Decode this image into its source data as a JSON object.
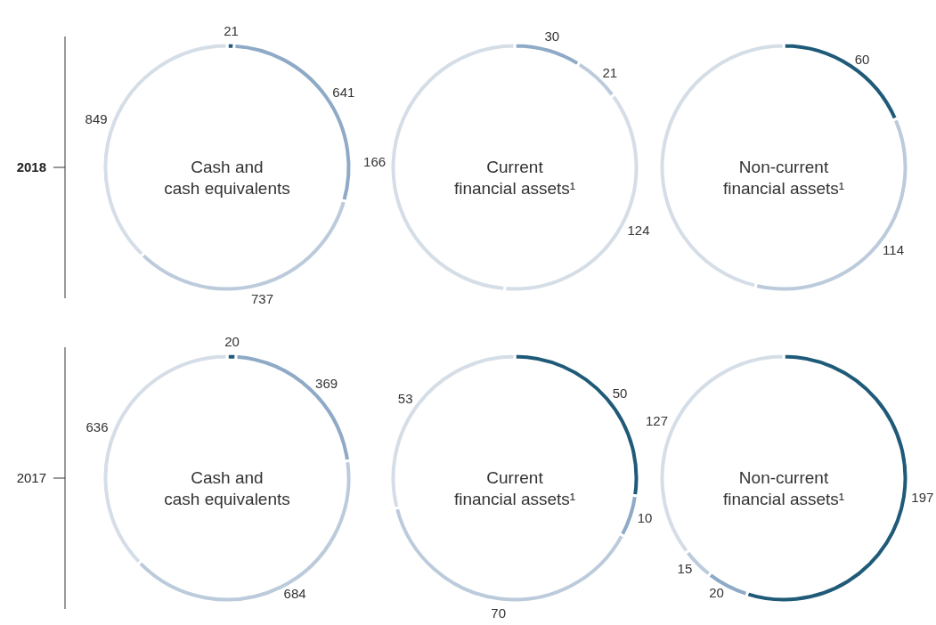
{
  "chart_data": [
    {
      "type": "donut",
      "title": "Cash and\ncash equivalents",
      "categories": [
        null,
        null,
        null,
        null
      ],
      "values": [
        21,
        641,
        737,
        849
      ],
      "colors": [
        "#1f5a78",
        "#8eaac6",
        "#bccbdb",
        "#d5dee7"
      ],
      "value_labels": [
        "21",
        "641",
        "737",
        "849"
      ],
      "annotations": [
        "2018"
      ]
    },
    {
      "type": "donut",
      "title": "Current\nfinancial assets¹",
      "categories": [
        null,
        null,
        null,
        null
      ],
      "values": [
        30,
        21,
        124,
        166
      ],
      "colors": [
        "#8eaac6",
        "#bccbdb",
        "#d5dee7",
        "#d5dee7"
      ],
      "value_labels": [
        "30",
        "21",
        "124",
        "166"
      ]
    },
    {
      "type": "donut",
      "title": "Non-current\nfinancial assets¹",
      "categories": [
        null,
        null,
        null
      ],
      "values": [
        60,
        114,
        150
      ],
      "colors": [
        "#1f5a78",
        "#bccbdb",
        "#d5dee7"
      ],
      "value_labels": [
        "60",
        "114",
        null
      ]
    },
    {
      "type": "donut",
      "title": "Cash and\ncash equivalents",
      "categories": [
        null,
        null,
        null,
        null
      ],
      "values": [
        20,
        369,
        684,
        636
      ],
      "colors": [
        "#1f5a78",
        "#8eaac6",
        "#bccbdb",
        "#d5dee7"
      ],
      "value_labels": [
        "20",
        "369",
        "684",
        "636"
      ],
      "annotations": [
        "2017"
      ]
    },
    {
      "type": "donut",
      "title": "Current\nfinancial assets¹",
      "categories": [
        null,
        null,
        null,
        null
      ],
      "values": [
        50,
        10,
        70,
        53
      ],
      "colors": [
        "#1f5a78",
        "#8eaac6",
        "#bccbdb",
        "#d5dee7"
      ],
      "value_labels": [
        "50",
        "10",
        "70",
        "53"
      ]
    },
    {
      "type": "donut",
      "title": "Non-current\nfinancial assets¹",
      "categories": [
        null,
        null,
        null,
        null
      ],
      "values": [
        197,
        20,
        15,
        127
      ],
      "colors": [
        "#1f5a78",
        "#8eaac6",
        "#bccbdb",
        "#d5dee7"
      ],
      "value_labels": [
        "197",
        "20",
        "15",
        "127"
      ]
    }
  ]
}
